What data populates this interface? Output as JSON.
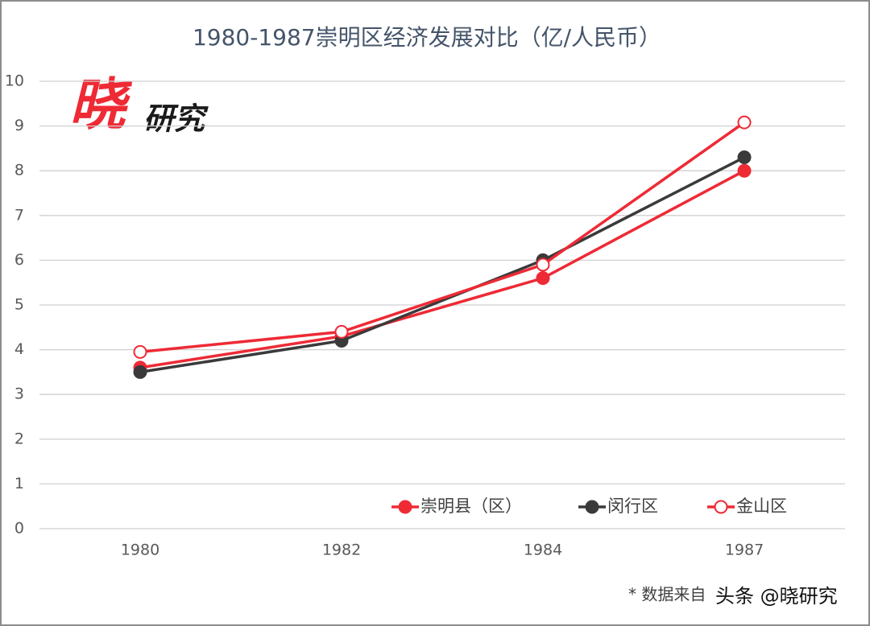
{
  "chart_data": {
    "type": "line",
    "title": "1980-1987崇明区经济发展对比（亿/人民币）",
    "categories": [
      "1980",
      "1982",
      "1984",
      "1987"
    ],
    "series": [
      {
        "name": "崇明县（区）",
        "color": "#ee2a35",
        "marker": "filled",
        "values": [
          3.6,
          4.3,
          5.6,
          8.0
        ]
      },
      {
        "name": "闵行区",
        "color": "#3a3a3a",
        "marker": "filled",
        "values": [
          3.5,
          4.2,
          6.0,
          8.3
        ]
      },
      {
        "name": "金山区",
        "color": "#ee2a35",
        "marker": "hollow",
        "values": [
          3.95,
          4.4,
          5.9,
          9.08
        ]
      }
    ],
    "ylim": [
      0,
      10
    ],
    "yticks": [
      0,
      1,
      2,
      3,
      4,
      5,
      6,
      7,
      8,
      9,
      10
    ],
    "grid": true,
    "legend": "lower right",
    "logo": {
      "big": "晓",
      "small": "研究"
    },
    "source": "* 数据来自",
    "watermark": "头条 @晓研究"
  }
}
